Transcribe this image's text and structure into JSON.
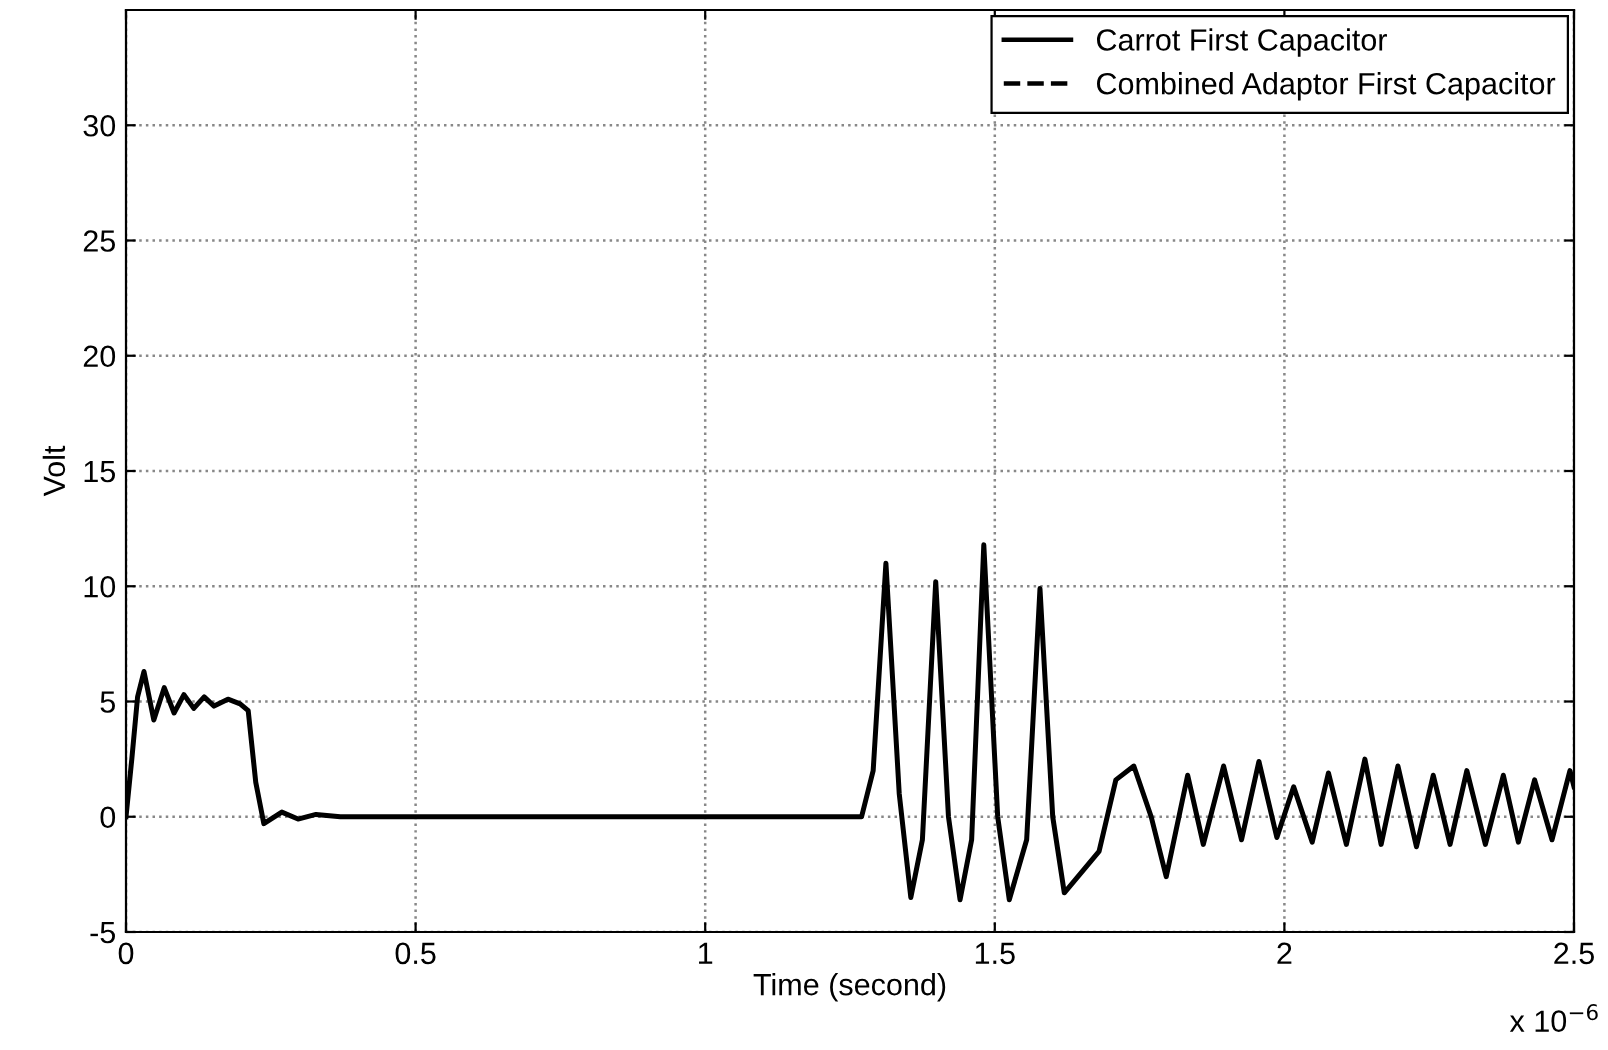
{
  "chart_data": {
    "type": "line",
    "xlabel": "Time (second)",
    "ylabel": "Volt",
    "annotations": [
      "x 10$^{−6}$"
    ],
    "xlim": [
      0,
      2.5
    ],
    "ylim": [
      -5,
      35
    ],
    "xticks": [
      0,
      0.5,
      1,
      1.5,
      2,
      2.5
    ],
    "yticks": [
      -5,
      0,
      5,
      10,
      15,
      20,
      25,
      30
    ],
    "grid": true,
    "legend": "top right",
    "series": [
      {
        "name": "Carrot First Capacitor",
        "color": "#000000",
        "line_style": "solid",
        "x": [
          0,
          0.01,
          0.02,
          0.031,
          0.048,
          0.066,
          0.083,
          0.1,
          0.117,
          0.135,
          0.152,
          0.176,
          0.197,
          0.211,
          0.224,
          0.238,
          0.269,
          0.297,
          0.328,
          0.37,
          0.5,
          1.0,
          1.27,
          1.29,
          1.312,
          1.335,
          1.355,
          1.375,
          1.398,
          1.42,
          1.44,
          1.46,
          1.481,
          1.505,
          1.525,
          1.555,
          1.578,
          1.6,
          1.62,
          1.68,
          1.709,
          1.74,
          1.77,
          1.796,
          1.833,
          1.86,
          1.895,
          1.926,
          1.956,
          1.987,
          2.016,
          2.048,
          2.076,
          2.107,
          2.139,
          2.167,
          2.196,
          2.228,
          2.257,
          2.286,
          2.315,
          2.347,
          2.378,
          2.404,
          2.432,
          2.462,
          2.493,
          2.5
        ],
        "values": [
          0,
          2.5,
          5.2,
          6.3,
          4.2,
          5.6,
          4.5,
          5.3,
          4.7,
          5.2,
          4.8,
          5.1,
          4.9,
          4.6,
          1.5,
          -0.3,
          0.2,
          -0.1,
          0.1,
          0,
          0,
          0,
          0,
          2,
          11.0,
          1,
          -3.5,
          -1,
          10.2,
          0,
          -3.6,
          -1,
          11.8,
          0,
          -3.6,
          -1,
          9.9,
          0,
          -3.3,
          -1.5,
          1.6,
          2.2,
          0,
          -2.6,
          1.8,
          -1.2,
          2.2,
          -1.0,
          2.4,
          -0.9,
          1.3,
          -1.1,
          1.9,
          -1.2,
          2.5,
          -1.2,
          2.2,
          -1.3,
          1.8,
          -1.2,
          2.0,
          -1.2,
          1.8,
          -1.1,
          1.6,
          -1.0,
          2.0,
          1.3
        ]
      },
      {
        "name": "Combined Adaptor First Capacitor",
        "color": "#000000",
        "line_style": "dashed"
      }
    ]
  }
}
